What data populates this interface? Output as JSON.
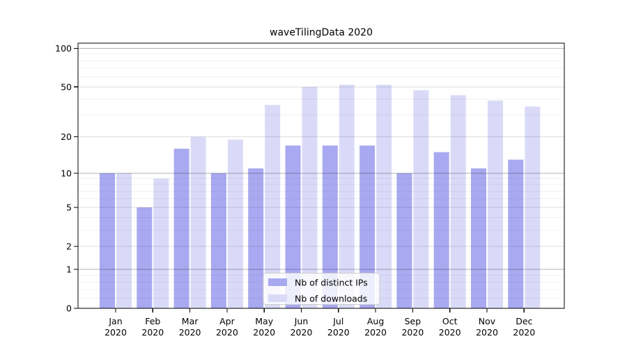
{
  "title": "waveTilingData 2020",
  "chart_data": {
    "type": "bar",
    "title": "waveTilingData 2020",
    "months": [
      "Jan",
      "Feb",
      "Mar",
      "Apr",
      "May",
      "Jun",
      "Jul",
      "Aug",
      "Sep",
      "Oct",
      "Nov",
      "Dec"
    ],
    "year": "2020",
    "series": [
      {
        "name": "Nb of distinct IPs",
        "color": "#a9a9f1",
        "values": [
          10,
          5,
          16,
          10,
          11,
          17,
          17,
          17,
          10,
          15,
          11,
          13
        ]
      },
      {
        "name": "Nb of downloads",
        "color": "#dadaf8",
        "values": [
          10,
          9,
          20,
          19,
          36,
          50,
          52,
          52,
          47,
          43,
          39,
          35
        ]
      }
    ],
    "yscale": "log1p",
    "ylim": [
      0,
      110
    ],
    "y_ticks": [
      100,
      50,
      20,
      10,
      5,
      2,
      1,
      0
    ],
    "y_minor_gridlines": [
      0.2,
      0.4,
      0.6,
      0.8,
      3,
      4,
      6,
      7,
      8,
      9,
      30,
      40,
      60,
      70,
      80,
      90
    ],
    "grid": true,
    "legend_position": "bottom-center",
    "axis_color": "#000000",
    "background_color": "#ffffff"
  }
}
